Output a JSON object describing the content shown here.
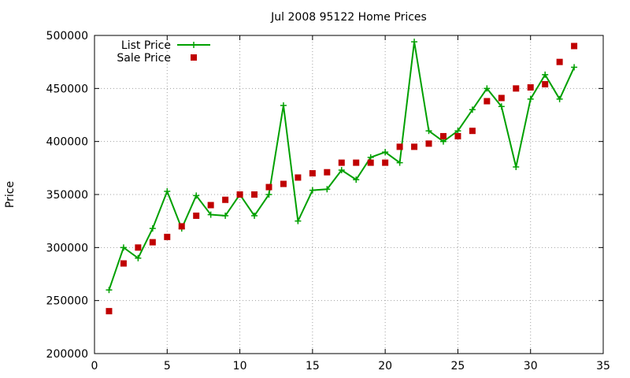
{
  "chart_data": {
    "type": "line",
    "title": "Jul 2008 95122 Home Prices",
    "xlabel": "",
    "ylabel": "Price",
    "xlim": [
      0,
      35
    ],
    "ylim": [
      200000,
      500000
    ],
    "xticks": [
      0,
      5,
      10,
      15,
      20,
      25,
      30,
      35
    ],
    "yticks": [
      200000,
      250000,
      300000,
      350000,
      400000,
      450000,
      500000
    ],
    "grid": true,
    "legend_position": "top-left",
    "series": [
      {
        "name": "List Price",
        "style": "line+cross",
        "color": "#00a000",
        "x": [
          1,
          2,
          3,
          4,
          5,
          6,
          7,
          8,
          9,
          10,
          11,
          12,
          13,
          14,
          15,
          16,
          17,
          18,
          19,
          20,
          21,
          22,
          23,
          24,
          25,
          26,
          27,
          28,
          29,
          30,
          31,
          32,
          33
        ],
        "y": [
          260000,
          300000,
          290000,
          318000,
          353000,
          318000,
          349000,
          331000,
          330000,
          350000,
          330000,
          350000,
          434000,
          325000,
          354000,
          355000,
          373000,
          364000,
          385000,
          390000,
          380000,
          494000,
          410000,
          400000,
          410000,
          430000,
          450000,
          433000,
          376000,
          440000,
          463000,
          440000,
          470000
        ]
      },
      {
        "name": "Sale Price",
        "style": "square",
        "color": "#c00000",
        "x": [
          1,
          2,
          3,
          4,
          5,
          6,
          7,
          8,
          9,
          10,
          11,
          12,
          13,
          14,
          15,
          16,
          17,
          18,
          19,
          20,
          21,
          22,
          23,
          24,
          25,
          26,
          27,
          28,
          29,
          30,
          31,
          32,
          33
        ],
        "y": [
          240000,
          285000,
          300000,
          305000,
          310000,
          320000,
          330000,
          340000,
          345000,
          350000,
          350000,
          357000,
          360000,
          366000,
          370000,
          371000,
          380000,
          380000,
          380000,
          380000,
          395000,
          395000,
          398000,
          405000,
          405000,
          410000,
          438000,
          441000,
          450000,
          451000,
          454000,
          475000,
          490000
        ]
      }
    ]
  }
}
